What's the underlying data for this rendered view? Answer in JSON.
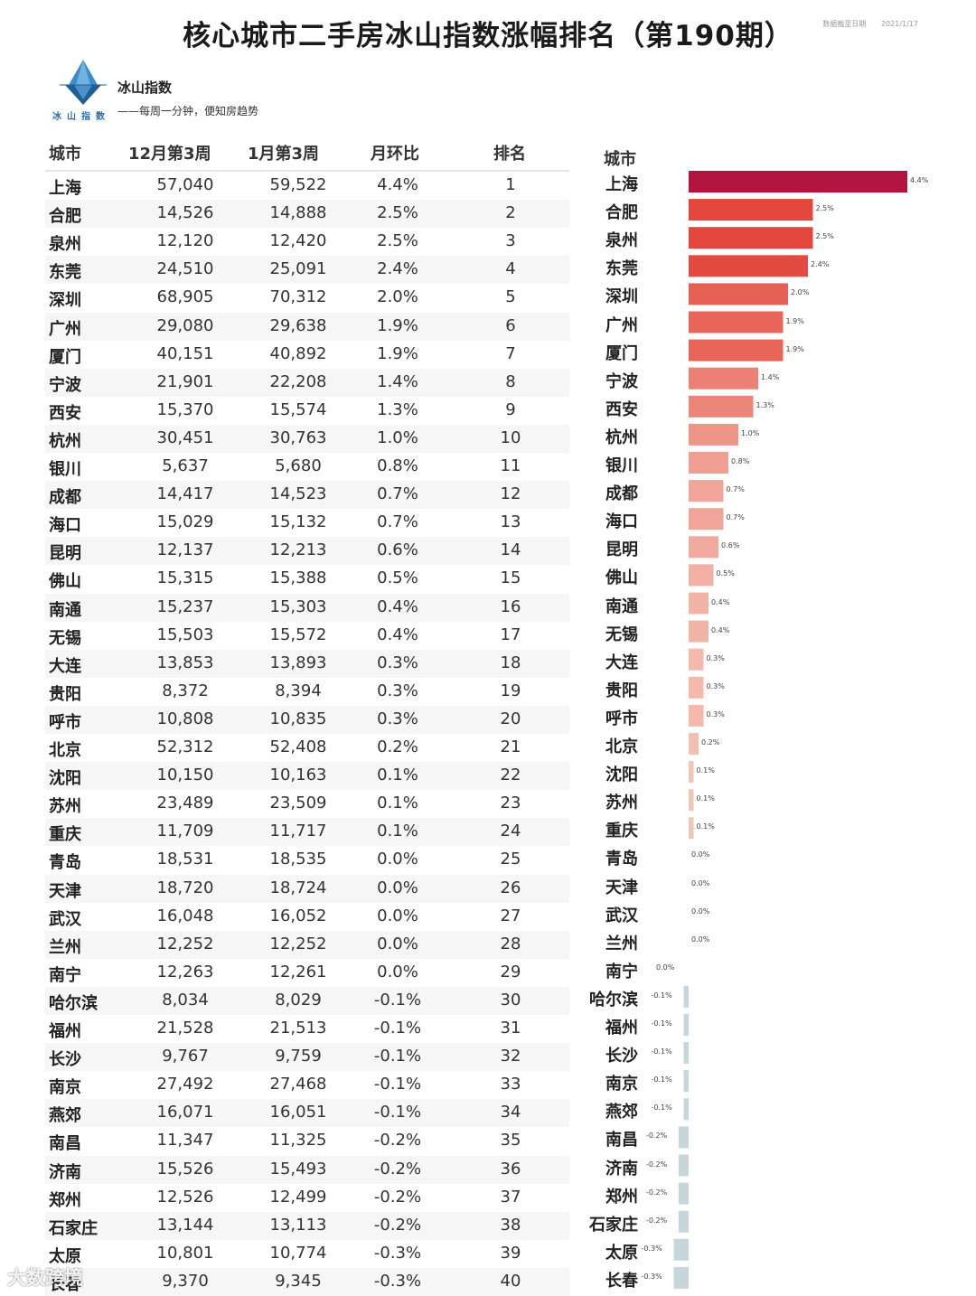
{
  "title": "核心城市二手房冰山指数涨幅排名（第190期）",
  "date_note": {
    "label": "数据截至日期",
    "date": "2021/1/17"
  },
  "brand": {
    "name": "冰山指数",
    "slogan": "——每周一分钟，便知房趋势",
    "logo_text": "冰山指数",
    "logo_icon": "iceberg-icon"
  },
  "table": {
    "headers": [
      "城市",
      "12月第3周",
      "1月第3周",
      "月环比",
      "排名"
    ]
  },
  "chart_header": "城市",
  "watermark": "大数跨境",
  "colors": {
    "top_bar": "#b3143f",
    "positive_high": "#e3463b",
    "positive_low": "#f6c9bd",
    "negative": "#c7d6dc"
  },
  "chart_data": {
    "type": "bar",
    "orientation": "horizontal",
    "categories": [
      "上海",
      "合肥",
      "泉州",
      "东莞",
      "深圳",
      "广州",
      "厦门",
      "宁波",
      "西安",
      "杭州",
      "银川",
      "成都",
      "海口",
      "昆明",
      "佛山",
      "南通",
      "无锡",
      "大连",
      "贵阳",
      "呼市",
      "北京",
      "沈阳",
      "苏州",
      "重庆",
      "青岛",
      "天津",
      "武汉",
      "兰州",
      "南宁",
      "哈尔滨",
      "福州",
      "长沙",
      "南京",
      "燕郊",
      "南昌",
      "济南",
      "郑州",
      "石家庄",
      "太原",
      "长春"
    ],
    "dec_week3": [
      "57,040",
      "14,526",
      "12,120",
      "24,510",
      "68,905",
      "29,080",
      "40,151",
      "21,901",
      "15,370",
      "30,451",
      "5,637",
      "14,417",
      "15,029",
      "12,137",
      "15,315",
      "15,237",
      "15,503",
      "13,853",
      "8,372",
      "10,808",
      "52,312",
      "10,150",
      "23,489",
      "11,709",
      "18,531",
      "18,720",
      "16,048",
      "12,252",
      "12,263",
      "8,034",
      "21,528",
      "9,767",
      "27,492",
      "16,071",
      "11,347",
      "15,526",
      "12,526",
      "13,144",
      "10,801",
      "9,370"
    ],
    "jan_week3": [
      "59,522",
      "14,888",
      "12,420",
      "25,091",
      "70,312",
      "29,638",
      "40,892",
      "22,208",
      "15,574",
      "30,763",
      "5,680",
      "14,523",
      "15,132",
      "12,213",
      "15,388",
      "15,303",
      "15,572",
      "13,893",
      "8,394",
      "10,835",
      "52,408",
      "10,163",
      "23,509",
      "11,717",
      "18,535",
      "18,724",
      "16,052",
      "12,252",
      "12,261",
      "8,029",
      "21,513",
      "9,759",
      "27,468",
      "16,051",
      "11,325",
      "15,493",
      "12,499",
      "13,113",
      "10,774",
      "9,345"
    ],
    "mom_labels": [
      "4.4%",
      "2.5%",
      "2.5%",
      "2.4%",
      "2.0%",
      "1.9%",
      "1.9%",
      "1.4%",
      "1.3%",
      "1.0%",
      "0.8%",
      "0.7%",
      "0.7%",
      "0.6%",
      "0.5%",
      "0.4%",
      "0.4%",
      "0.3%",
      "0.3%",
      "0.3%",
      "0.2%",
      "0.1%",
      "0.1%",
      "0.1%",
      "0.0%",
      "0.0%",
      "0.0%",
      "0.0%",
      "0.0%",
      "-0.1%",
      "-0.1%",
      "-0.1%",
      "-0.1%",
      "-0.1%",
      "-0.2%",
      "-0.2%",
      "-0.2%",
      "-0.2%",
      "-0.3%",
      "-0.3%"
    ],
    "values": [
      4.4,
      2.5,
      2.5,
      2.4,
      2.0,
      1.9,
      1.9,
      1.4,
      1.3,
      1.0,
      0.8,
      0.7,
      0.7,
      0.6,
      0.5,
      0.4,
      0.4,
      0.3,
      0.3,
      0.3,
      0.2,
      0.1,
      0.1,
      0.1,
      0.0,
      0.0,
      0.0,
      0.0,
      0.0,
      -0.1,
      -0.1,
      -0.1,
      -0.1,
      -0.1,
      -0.2,
      -0.2,
      -0.2,
      -0.2,
      -0.3,
      -0.3
    ],
    "bar_labels": [
      "4.4%",
      "2.5%",
      "2.5%",
      "2.4%",
      "2.0%",
      "1.9%",
      "1.9%",
      "1.4%",
      "1.3%",
      "1.0%",
      "0.8%",
      "0.7%",
      "0.7%",
      "0.6%",
      "0.5%",
      "0.4%",
      "0.4%",
      "0.3%",
      "0.3%",
      "0.3%",
      "0.2%",
      "0.1%",
      "0.1%",
      "0.1%",
      "0.0%",
      "0.0%",
      "0.0%",
      "0.0%",
      "0.0%",
      "-0.1%",
      "-0.1%",
      "-0.1%",
      "-0.1%",
      "-0.1%",
      "-0.2%",
      "-0.2%",
      "-0.2%",
      "-0.2%",
      "-0.3%",
      "-0.3%"
    ],
    "ranks": [
      "1",
      "2",
      "3",
      "4",
      "5",
      "6",
      "7",
      "8",
      "9",
      "10",
      "11",
      "12",
      "13",
      "14",
      "15",
      "16",
      "17",
      "18",
      "19",
      "20",
      "21",
      "22",
      "23",
      "24",
      "25",
      "26",
      "27",
      "28",
      "29",
      "30",
      "31",
      "32",
      "33",
      "34",
      "35",
      "36",
      "37",
      "38",
      "39",
      "40"
    ],
    "value_unit": "%"
  }
}
